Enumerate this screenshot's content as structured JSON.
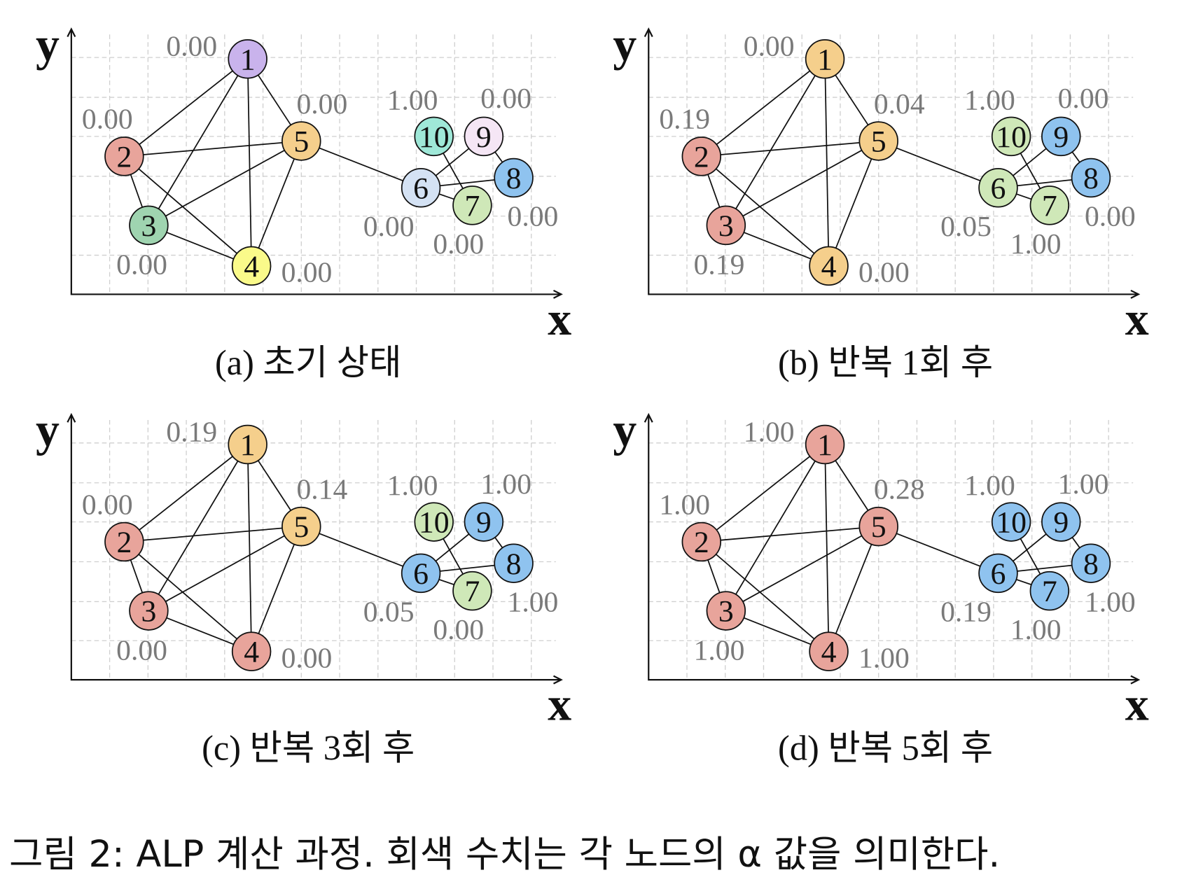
{
  "axis_labels": {
    "x": "x",
    "y": "y"
  },
  "panels": [
    {
      "caption": "(a) 초기 상태",
      "nodes": [
        {
          "label": "1",
          "alpha": "0.00",
          "color": "#c9b3ec"
        },
        {
          "label": "2",
          "alpha": "0.00",
          "color": "#e8a49b"
        },
        {
          "label": "3",
          "alpha": "0.00",
          "color": "#9fd4b0"
        },
        {
          "label": "4",
          "alpha": "0.00",
          "color": "#fafa8a"
        },
        {
          "label": "5",
          "alpha": "0.00",
          "color": "#f5cf8c"
        },
        {
          "label": "6",
          "alpha": "0.00",
          "color": "#d4e2f4"
        },
        {
          "label": "7",
          "alpha": "0.00",
          "color": "#cfe8b8"
        },
        {
          "label": "8",
          "alpha": "0.00",
          "color": "#8fc3ef"
        },
        {
          "label": "9",
          "alpha": "0.00",
          "color": "#f5e6f5"
        },
        {
          "label": "10",
          "alpha": "1.00",
          "color": "#9fe8d8"
        }
      ]
    },
    {
      "caption": "(b) 반복 1회 후",
      "nodes": [
        {
          "label": "1",
          "alpha": "0.00",
          "color": "#f5cf8c"
        },
        {
          "label": "2",
          "alpha": "0.19",
          "color": "#e8a49b"
        },
        {
          "label": "3",
          "alpha": "0.19",
          "color": "#e8a49b"
        },
        {
          "label": "4",
          "alpha": "0.00",
          "color": "#f5cf8c"
        },
        {
          "label": "5",
          "alpha": "0.04",
          "color": "#f5cf8c"
        },
        {
          "label": "6",
          "alpha": "0.05",
          "color": "#cfe8b8"
        },
        {
          "label": "7",
          "alpha": "1.00",
          "color": "#cfe8b8"
        },
        {
          "label": "8",
          "alpha": "0.00",
          "color": "#8fc3ef"
        },
        {
          "label": "9",
          "alpha": "0.00",
          "color": "#8fc3ef"
        },
        {
          "label": "10",
          "alpha": "1.00",
          "color": "#cfe8b8"
        }
      ]
    },
    {
      "caption": "(c) 반복 3회 후",
      "nodes": [
        {
          "label": "1",
          "alpha": "0.19",
          "color": "#f5cf8c"
        },
        {
          "label": "2",
          "alpha": "0.00",
          "color": "#e8a49b"
        },
        {
          "label": "3",
          "alpha": "0.00",
          "color": "#e8a49b"
        },
        {
          "label": "4",
          "alpha": "0.00",
          "color": "#e8a49b"
        },
        {
          "label": "5",
          "alpha": "0.14",
          "color": "#f5cf8c"
        },
        {
          "label": "6",
          "alpha": "0.05",
          "color": "#8fc3ef"
        },
        {
          "label": "7",
          "alpha": "0.00",
          "color": "#cfe8b8"
        },
        {
          "label": "8",
          "alpha": "1.00",
          "color": "#8fc3ef"
        },
        {
          "label": "9",
          "alpha": "1.00",
          "color": "#8fc3ef"
        },
        {
          "label": "10",
          "alpha": "1.00",
          "color": "#cfe8b8"
        }
      ]
    },
    {
      "caption": "(d) 반복 5회 후",
      "nodes": [
        {
          "label": "1",
          "alpha": "1.00",
          "color": "#e8a49b"
        },
        {
          "label": "2",
          "alpha": "1.00",
          "color": "#e8a49b"
        },
        {
          "label": "3",
          "alpha": "1.00",
          "color": "#e8a49b"
        },
        {
          "label": "4",
          "alpha": "1.00",
          "color": "#e8a49b"
        },
        {
          "label": "5",
          "alpha": "0.28",
          "color": "#e8a49b"
        },
        {
          "label": "6",
          "alpha": "0.19",
          "color": "#8fc3ef"
        },
        {
          "label": "7",
          "alpha": "1.00",
          "color": "#8fc3ef"
        },
        {
          "label": "8",
          "alpha": "1.00",
          "color": "#8fc3ef"
        },
        {
          "label": "9",
          "alpha": "1.00",
          "color": "#8fc3ef"
        },
        {
          "label": "10",
          "alpha": "1.00",
          "color": "#8fc3ef"
        }
      ]
    }
  ],
  "figure_caption": "그림 2:  ALP 계산 과정.  회색 수치는 각 노드의 α 값을 의미한다."
}
